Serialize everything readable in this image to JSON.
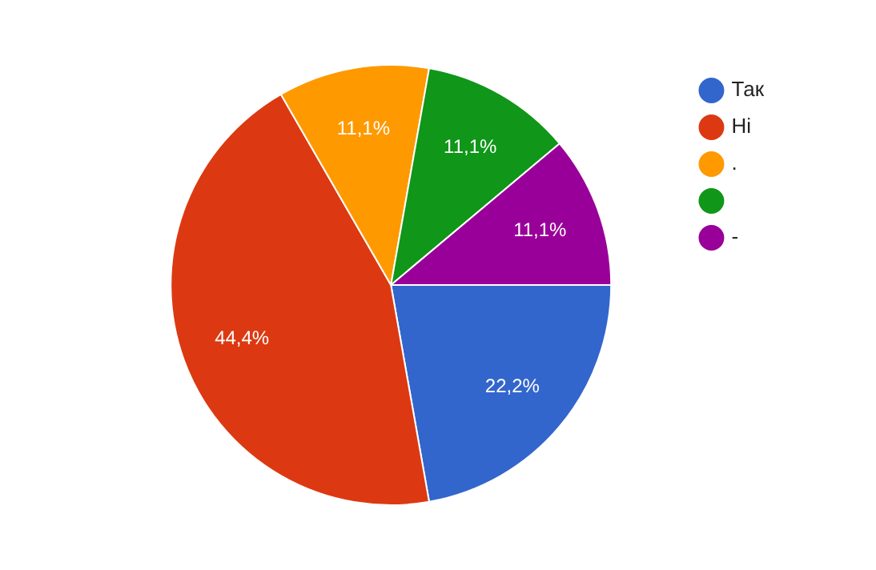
{
  "chart_data": {
    "type": "pie",
    "categories": [
      "Так",
      "Ні",
      ".",
      null,
      "-"
    ],
    "values": [
      22.2,
      44.4,
      11.1,
      11.1,
      11.1
    ],
    "value_labels": [
      "22,2%",
      "44,4%",
      "11,1%",
      "11,1%",
      "11,1%"
    ],
    "colors": [
      "#3366cc",
      "#dc3912",
      "#ff9900",
      "#109618",
      "#990099"
    ],
    "legend": "top right"
  }
}
